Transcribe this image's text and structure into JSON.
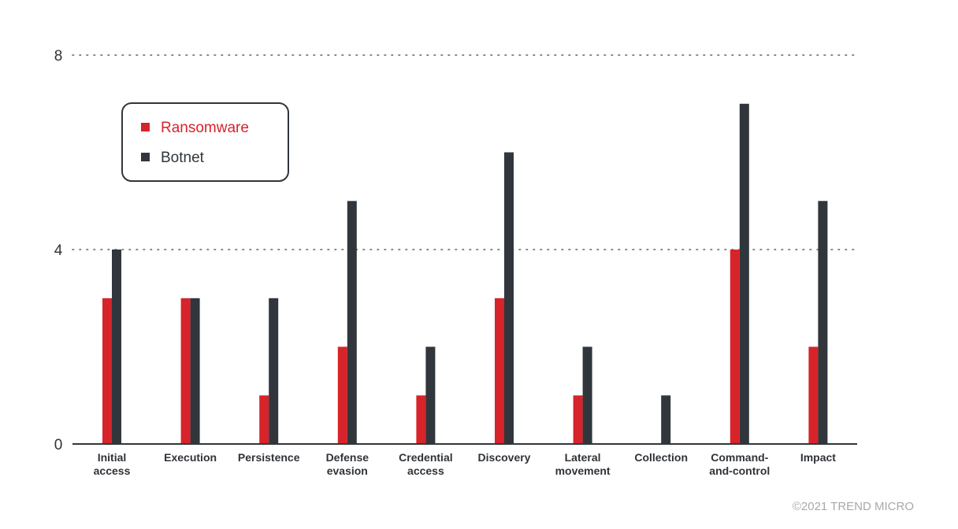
{
  "chart_data": {
    "type": "bar",
    "categories": [
      [
        "Initial",
        "access"
      ],
      [
        "Execution"
      ],
      [
        "Persistence"
      ],
      [
        "Defense",
        "evasion"
      ],
      [
        "Credential",
        "access"
      ],
      [
        "Discovery"
      ],
      [
        "Lateral",
        "movement"
      ],
      [
        "Collection"
      ],
      [
        "Command-",
        "and-control"
      ],
      [
        "Impact"
      ]
    ],
    "series": [
      {
        "name": "Ransomware",
        "color": "#d7232a",
        "values": [
          3,
          3,
          1,
          2,
          1,
          3,
          1,
          0,
          4,
          2
        ]
      },
      {
        "name": "Botnet",
        "color": "#30363c",
        "values": [
          4,
          3,
          3,
          5,
          2,
          6,
          2,
          1,
          7,
          5
        ]
      }
    ],
    "ylim": [
      0,
      8
    ],
    "yticks": [
      0,
      4,
      8
    ],
    "grid": "dotted",
    "legend_position": "top-left",
    "title": "",
    "xlabel": "",
    "ylabel": ""
  },
  "footer": {
    "copyright": "©2021 TREND MICRO"
  }
}
